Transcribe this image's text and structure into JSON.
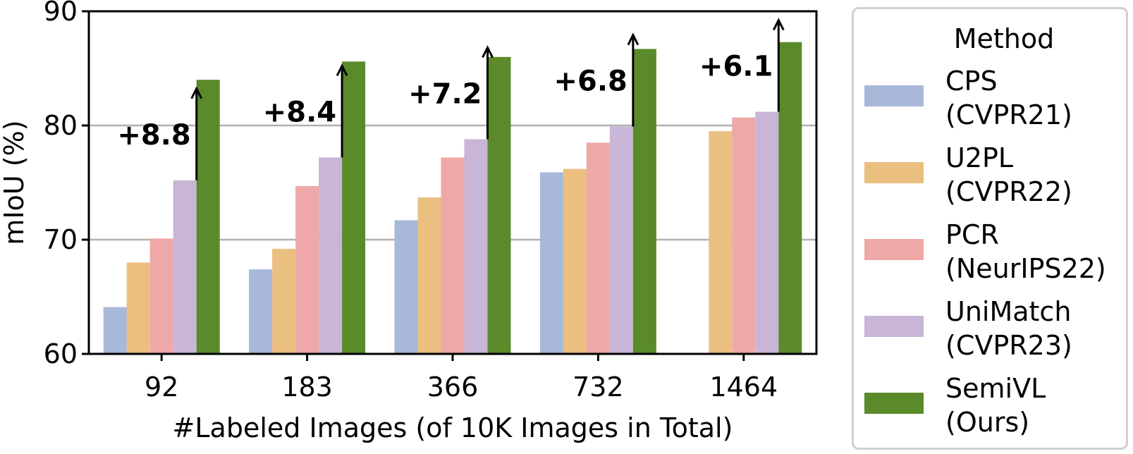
{
  "chart_data": {
    "type": "bar",
    "title": "",
    "xlabel": "#Labeled Images (of 10K Images in Total)",
    "ylabel": "mIoU (%)",
    "ylim": [
      60,
      90
    ],
    "yticks": [
      "60",
      "70",
      "80",
      "90"
    ],
    "grid": "horizontal",
    "legend_position": "right",
    "legend_title": "Method",
    "categories": [
      "92",
      "183",
      "366",
      "732",
      "1464"
    ],
    "series": [
      {
        "name": "CPS (CVPR21)",
        "line1": "CPS",
        "line2": "(CVPR21)",
        "color": "#a8b8d8",
        "values": [
          64.1,
          67.4,
          71.7,
          75.9,
          null
        ]
      },
      {
        "name": "U2PL (CVPR22)",
        "line1": "U2PL",
        "line2": "(CVPR22)",
        "color": "#ebbf80",
        "values": [
          68.0,
          69.2,
          73.7,
          76.2,
          79.5
        ]
      },
      {
        "name": "PCR (NeurIPS22)",
        "line1": "PCR",
        "line2": "(NeurIPS22)",
        "color": "#eea8a8",
        "values": [
          70.1,
          74.7,
          77.2,
          78.5,
          80.7
        ]
      },
      {
        "name": "UniMatch (CVPR23)",
        "line1": "UniMatch",
        "line2": "(CVPR23)",
        "color": "#c9b5d6",
        "values": [
          75.2,
          77.2,
          78.8,
          79.9,
          81.2
        ]
      },
      {
        "name": "SemiVL (Ours)",
        "line1": "SemiVL",
        "line2": "(Ours)",
        "color": "#5a8a2a",
        "values": [
          84.0,
          85.6,
          86.0,
          86.7,
          87.3
        ]
      }
    ],
    "annotations": [
      "+8.8",
      "+8.4",
      "+7.2",
      "+6.8",
      "+6.1"
    ]
  }
}
